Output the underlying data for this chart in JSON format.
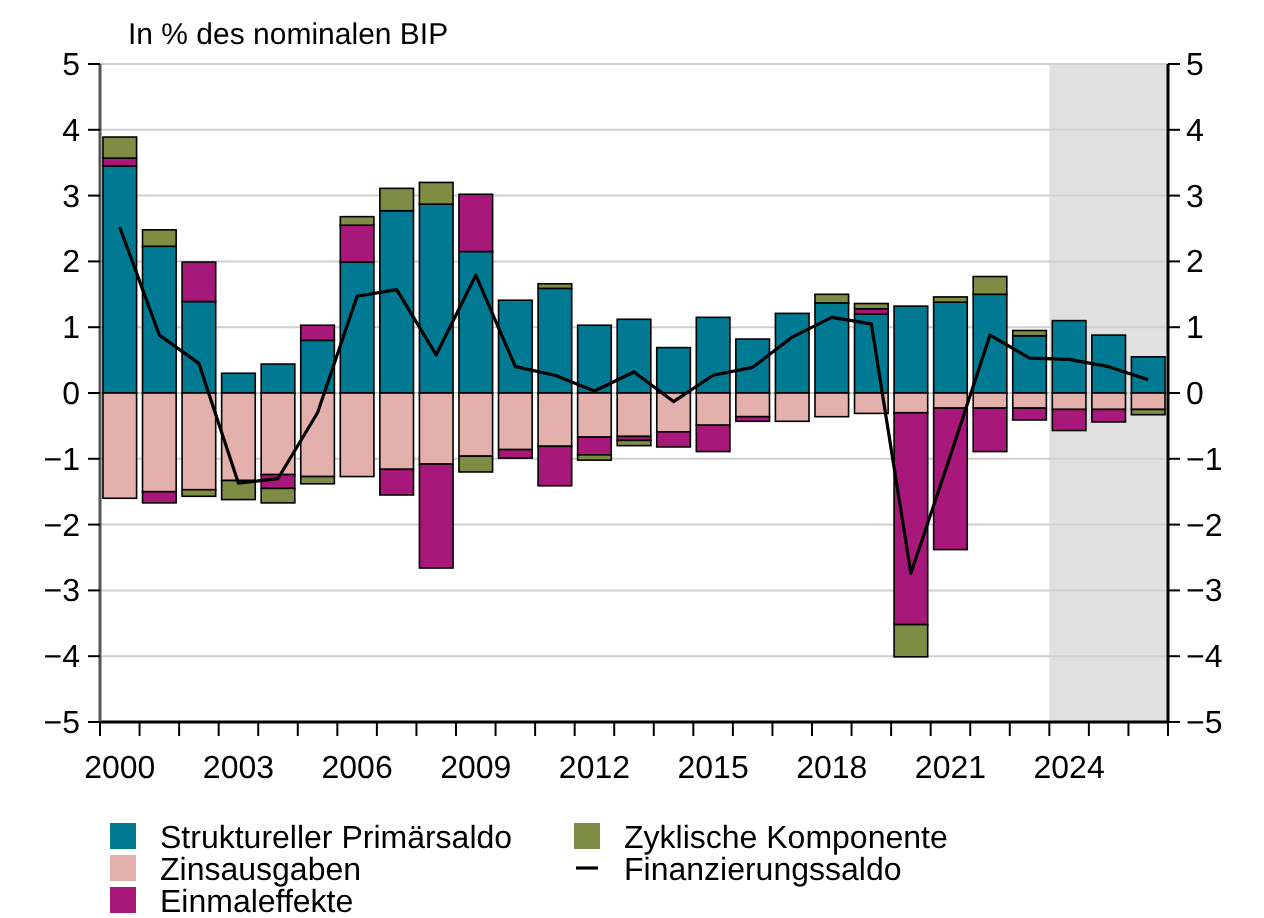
{
  "chart_data": {
    "type": "bar",
    "stacked": true,
    "ylabel": "In % des nominalen BIP",
    "x": [
      2000,
      2001,
      2002,
      2003,
      2004,
      2005,
      2006,
      2007,
      2008,
      2009,
      2010,
      2011,
      2012,
      2013,
      2014,
      2015,
      2016,
      2017,
      2018,
      2019,
      2020,
      2021,
      2022,
      2023,
      2024,
      2025,
      2026
    ],
    "xlim": [
      1999.5,
      2026.5
    ],
    "xticks": [
      2000,
      2003,
      2006,
      2009,
      2012,
      2015,
      2018,
      2021,
      2024,
      {
        "value": 1999.5,
        "label": null
      },
      {
        "value": 2000.5,
        "label": null
      },
      {
        "value": 2001.5,
        "label": null
      },
      {
        "value": 2002.5,
        "label": null
      },
      {
        "value": 2003.5,
        "label": null
      },
      {
        "value": 2004.5,
        "label": null
      },
      {
        "value": 2005.5,
        "label": null
      },
      {
        "value": 2006.5,
        "label": null
      },
      {
        "value": 2007.5,
        "label": null
      },
      {
        "value": 2008.5,
        "label": null
      },
      {
        "value": 2009.5,
        "label": null
      },
      {
        "value": 2010.5,
        "label": null
      },
      {
        "value": 2011.5,
        "label": null
      },
      {
        "value": 2012.5,
        "label": null
      },
      {
        "value": 2013.5,
        "label": null
      },
      {
        "value": 2014.5,
        "label": null
      },
      {
        "value": 2015.5,
        "label": null
      },
      {
        "value": 2016.5,
        "label": null
      },
      {
        "value": 2017.5,
        "label": null
      },
      {
        "value": 2018.5,
        "label": null
      },
      {
        "value": 2019.5,
        "label": null
      },
      {
        "value": 2020.5,
        "label": null
      },
      {
        "value": 2021.5,
        "label": null
      },
      {
        "value": 2022.5,
        "label": null
      },
      {
        "value": 2023.5,
        "label": null
      },
      {
        "value": 2024.5,
        "label": null
      },
      {
        "value": 2025.5,
        "label": null
      },
      {
        "value": 2026.5,
        "label": null
      }
    ],
    "ylim": [
      -5,
      5
    ],
    "yticks": [
      -5,
      -4,
      -3,
      -2,
      -1,
      0,
      1,
      2,
      3,
      4,
      5
    ],
    "y2lim": [
      -5,
      5
    ],
    "y2ticks": [
      -5,
      -4,
      -3,
      -2,
      -1,
      0,
      1,
      2,
      3,
      4,
      5
    ],
    "grid": "y",
    "legend": "bottom",
    "bands": [
      {
        "axis": "x",
        "from": 2023.5,
        "to": 2026.5,
        "color": "#e0e0e0"
      }
    ],
    "series": [
      {
        "name": "Struktureller Primärsaldo",
        "color": "#007a93",
        "values": [
          3.45,
          2.23,
          1.39,
          0.3,
          0.44,
          0.8,
          1.99,
          2.77,
          2.87,
          2.15,
          1.41,
          1.59,
          1.03,
          1.12,
          0.69,
          1.15,
          0.82,
          1.21,
          1.37,
          1.2,
          1.32,
          1.38,
          1.5,
          0.87,
          1.1,
          0.88,
          0.55
        ]
      },
      {
        "name": "Zinsausgaben",
        "color": "#e3b0ab",
        "values": [
          -1.6,
          -1.5,
          -1.47,
          -1.33,
          -1.24,
          -1.27,
          -1.27,
          -1.16,
          -1.08,
          -0.96,
          -0.86,
          -0.81,
          -0.67,
          -0.66,
          -0.59,
          -0.49,
          -0.36,
          -0.43,
          -0.36,
          -0.31,
          -0.3,
          -0.23,
          -0.23,
          -0.23,
          -0.25,
          -0.25,
          -0.25
        ]
      },
      {
        "name": "Einmaleffekte",
        "color": "#a8177a",
        "values": [
          0.12,
          -0.17,
          0.6,
          null,
          -0.21,
          0.23,
          0.56,
          -0.39,
          -1.58,
          0.87,
          -0.13,
          -0.6,
          -0.27,
          -0.06,
          -0.23,
          -0.4,
          -0.07,
          null,
          null,
          0.08,
          -3.22,
          -2.15,
          -0.66,
          -0.18,
          -0.32,
          -0.19,
          null
        ]
      },
      {
        "name": "Zyklische Komponente",
        "color": "#7f8c43",
        "values": [
          0.32,
          0.25,
          -0.1,
          -0.29,
          -0.22,
          -0.11,
          0.13,
          0.34,
          0.33,
          -0.24,
          null,
          0.07,
          -0.08,
          -0.08,
          null,
          null,
          null,
          null,
          0.13,
          0.08,
          -0.49,
          0.08,
          0.27,
          0.08,
          null,
          null,
          -0.08
        ]
      },
      {
        "name": "Finanzierungssaldo",
        "type": "line",
        "color": "#000000",
        "values": [
          2.52,
          0.88,
          0.45,
          -1.37,
          -1.3,
          -0.3,
          1.47,
          1.57,
          0.58,
          1.79,
          0.4,
          0.27,
          0.03,
          0.32,
          -0.13,
          0.27,
          0.39,
          0.85,
          1.15,
          1.05,
          -2.74,
          -0.95,
          0.88,
          0.53,
          0.51,
          0.4,
          0.2
        ]
      }
    ]
  }
}
